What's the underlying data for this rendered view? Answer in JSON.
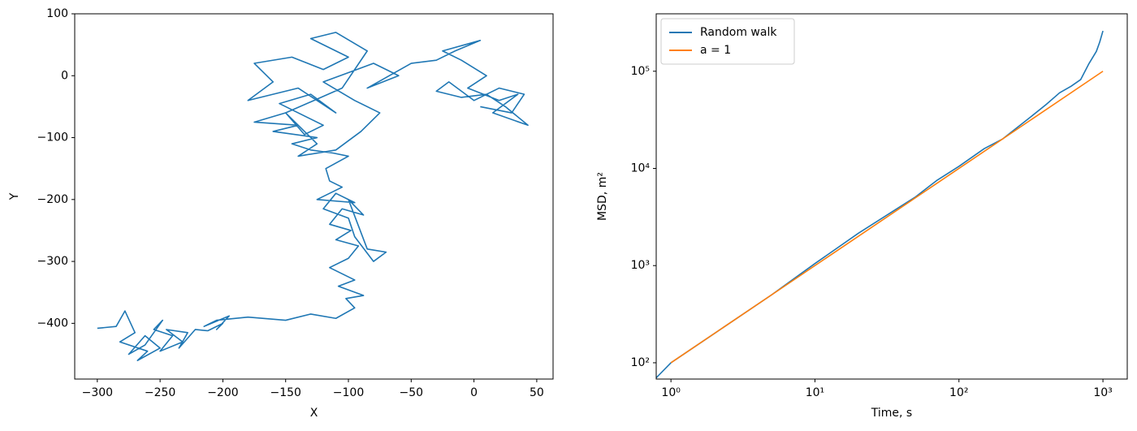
{
  "chart_data": [
    {
      "type": "line",
      "xlabel": "X",
      "ylabel": "Y",
      "xlim": [
        -318,
        63
      ],
      "ylim": [
        -490,
        100
      ],
      "xticks": [
        {
          "value": -300,
          "label": "−300"
        },
        {
          "value": -250,
          "label": "−250"
        },
        {
          "value": -200,
          "label": "−200"
        },
        {
          "value": -150,
          "label": "−150"
        },
        {
          "value": -100,
          "label": "−100"
        },
        {
          "value": -50,
          "label": "−50"
        },
        0,
        50
      ],
      "yticks": [
        {
          "value": -400,
          "label": "−400"
        },
        {
          "value": -300,
          "label": "−300"
        },
        {
          "value": -200,
          "label": "−200"
        },
        {
          "value": -100,
          "label": "−100"
        },
        0,
        100
      ],
      "xscale": "linear",
      "yscale": "linear",
      "series": [
        {
          "color": "#1f77b4",
          "x": [
            -300,
            -285,
            -278,
            -270,
            -282,
            -260,
            -268,
            -250,
            -262,
            -275,
            -262,
            -248,
            -255,
            -240,
            -250,
            -232,
            -245,
            -228,
            -235,
            -222,
            -212,
            -200,
            -205,
            -195,
            -215,
            -205,
            -180,
            -150,
            -130,
            -110,
            -95,
            -102,
            -88,
            -108,
            -95,
            -115,
            -100,
            -92,
            -110,
            -98,
            -115,
            -105,
            -88,
            -100,
            -85,
            -70,
            -80,
            -95,
            -100,
            -120,
            -110,
            -95,
            -125,
            -105,
            -115,
            -118,
            -100,
            -112,
            -130,
            -145,
            -125,
            -160,
            -140,
            -175,
            -150,
            -135,
            -120,
            -155,
            -130,
            -110,
            -140,
            -180,
            -160,
            -175,
            -145,
            -120,
            -100,
            -130,
            -110,
            -85,
            -105,
            -150,
            -125,
            -140,
            -110,
            -90,
            -75,
            -95,
            -120,
            -100,
            -80,
            -60,
            -85,
            -50,
            -30,
            -15,
            5,
            -25,
            -10,
            10,
            -5,
            20,
            35,
            15,
            43,
            25,
            10,
            -10,
            -30,
            -20,
            0,
            20,
            40,
            30,
            5
          ],
          "values": [
            -408,
            -405,
            -380,
            -415,
            -430,
            -445,
            -460,
            -440,
            -420,
            -450,
            -435,
            -395,
            -410,
            -420,
            -445,
            -430,
            -410,
            -415,
            -440,
            -410,
            -412,
            -400,
            -410,
            -388,
            -405,
            -395,
            -390,
            -395,
            -385,
            -392,
            -375,
            -360,
            -355,
            -340,
            -330,
            -310,
            -295,
            -275,
            -265,
            -250,
            -240,
            -215,
            -225,
            -200,
            -280,
            -285,
            -300,
            -260,
            -230,
            -215,
            -190,
            -205,
            -200,
            -180,
            -170,
            -150,
            -130,
            -125,
            -120,
            -110,
            -100,
            -90,
            -80,
            -75,
            -60,
            -95,
            -80,
            -45,
            -30,
            -60,
            -20,
            -40,
            -10,
            20,
            30,
            10,
            30,
            60,
            70,
            40,
            -20,
            -60,
            -110,
            -130,
            -120,
            -90,
            -60,
            -40,
            -10,
            5,
            20,
            0,
            -20,
            20,
            25,
            40,
            57,
            40,
            25,
            0,
            -20,
            -40,
            -30,
            -60,
            -80,
            -50,
            -30,
            -35,
            -25,
            -10,
            -40,
            -20,
            -30,
            -60,
            -50
          ]
        }
      ]
    },
    {
      "type": "line",
      "xlabel": "Time, s",
      "ylabel": "MSD, m²",
      "xlim": [
        0.79,
        1475
      ],
      "ylim": [
        68,
        390000
      ],
      "xscale": "log",
      "yscale": "log",
      "xticks": [
        {
          "value": 1,
          "label": "10⁰"
        },
        {
          "value": 10,
          "label": "10¹"
        },
        {
          "value": 100,
          "label": "10²"
        },
        {
          "value": 1000,
          "label": "10³"
        }
      ],
      "yticks": [
        {
          "value": 100,
          "label": "10²"
        },
        {
          "value": 1000,
          "label": "10³"
        },
        {
          "value": 10000,
          "label": "10⁴"
        },
        {
          "value": 100000,
          "label": "10⁵"
        }
      ],
      "legend": "upper left",
      "series": [
        {
          "name": "Random walk",
          "color": "#1f77b4",
          "x": [
            0.79,
            1,
            2,
            5,
            10,
            20,
            50,
            70,
            100,
            150,
            200,
            300,
            400,
            500,
            600,
            700,
            800,
            900,
            950,
            1000
          ],
          "values": [
            70,
            100,
            200,
            500,
            1050,
            2150,
            5100,
            7500,
            10500,
            16000,
            20000,
            32000,
            45000,
            60000,
            70000,
            82000,
            120000,
            160000,
            200000,
            260000
          ]
        },
        {
          "name": "a = 1",
          "color": "#ff7f0e",
          "x": [
            1,
            1000
          ],
          "values": [
            100,
            100000
          ]
        }
      ]
    }
  ]
}
